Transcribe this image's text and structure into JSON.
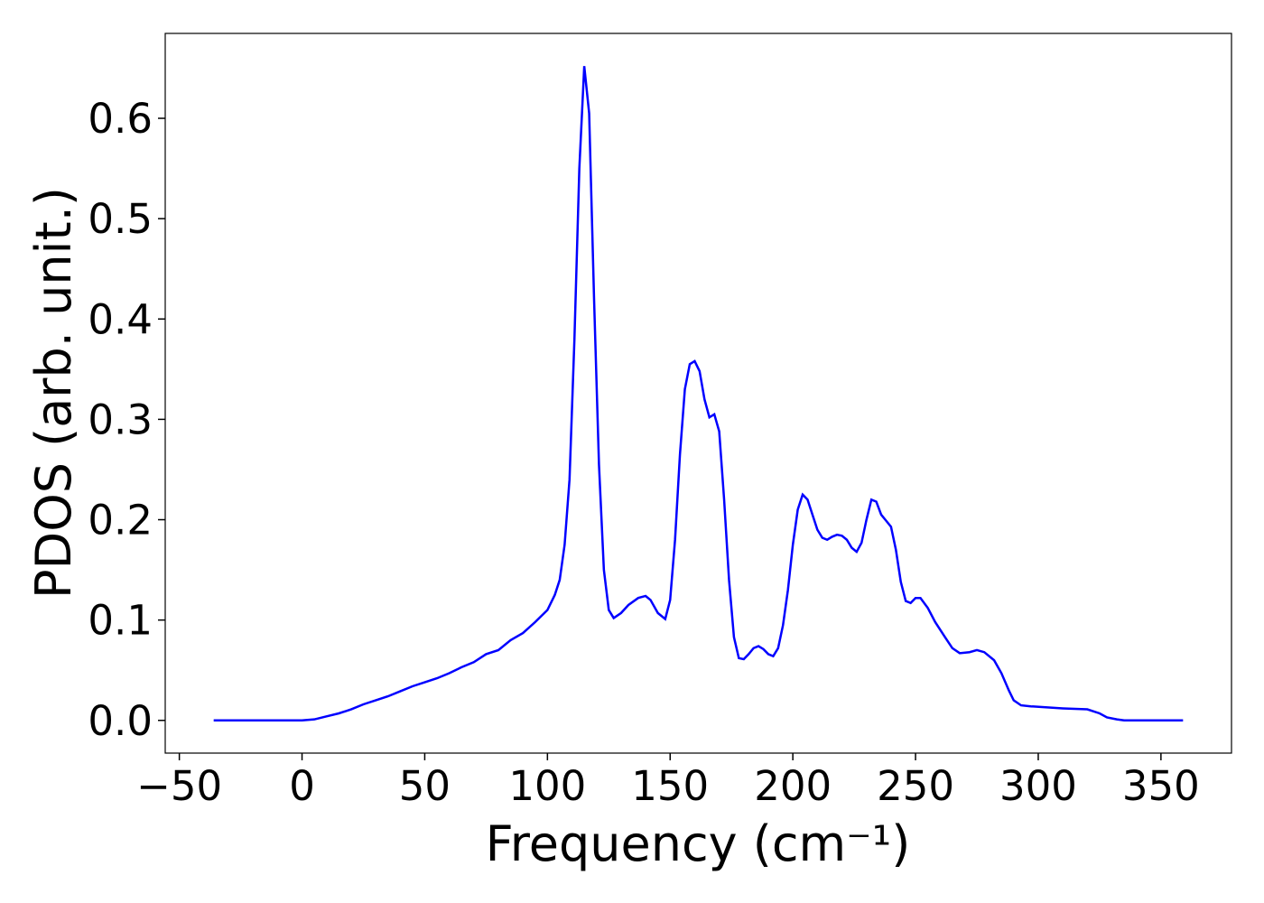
{
  "chart_data": {
    "type": "line",
    "xlabel": "Frequency (cm⁻¹)",
    "ylabel": "PDOS (arb. unit.)",
    "xlim": [
      -55.75,
      378.75
    ],
    "ylim": [
      -0.0326,
      0.6846
    ],
    "xticks": [
      {
        "value": -50,
        "label": "−50"
      },
      0,
      50,
      100,
      150,
      200,
      250,
      300,
      350
    ],
    "yticks": [
      {
        "value": 0,
        "label": "0.0"
      },
      0.1,
      0.2,
      0.3,
      0.4,
      0.5,
      0.6
    ],
    "grid": false,
    "series": [
      {
        "color": "#0000ff",
        "x": [
          -36,
          0,
          5,
          10,
          15,
          20,
          25,
          30,
          35,
          40,
          45,
          50,
          55,
          60,
          65,
          70,
          75,
          80,
          85,
          90,
          95,
          100,
          103,
          105,
          107,
          109,
          111,
          113,
          115,
          117,
          119,
          121,
          123,
          125,
          127,
          130,
          133,
          137,
          140,
          142,
          145,
          148,
          150,
          152,
          154,
          156,
          158,
          160,
          162,
          164,
          166,
          168,
          170,
          172,
          174,
          176,
          178,
          180,
          182,
          184,
          186,
          188,
          190,
          192,
          194,
          196,
          198,
          200,
          202,
          204,
          206,
          208,
          210,
          212,
          214,
          216,
          218,
          220,
          222,
          224,
          226,
          228,
          230,
          232,
          234,
          236,
          238,
          240,
          242,
          244,
          246,
          248,
          250,
          252,
          255,
          258,
          262,
          265,
          268,
          272,
          275,
          278,
          282,
          285,
          288,
          290,
          293,
          297,
          310,
          320,
          325,
          328,
          332,
          335,
          359
        ],
        "values": [
          0,
          0,
          0.001,
          0.004,
          0.007,
          0.011,
          0.016,
          0.02,
          0.024,
          0.029,
          0.034,
          0.038,
          0.042,
          0.047,
          0.053,
          0.058,
          0.066,
          0.07,
          0.08,
          0.087,
          0.098,
          0.11,
          0.125,
          0.14,
          0.175,
          0.24,
          0.38,
          0.55,
          0.652,
          0.605,
          0.42,
          0.255,
          0.15,
          0.11,
          0.102,
          0.107,
          0.115,
          0.122,
          0.124,
          0.12,
          0.107,
          0.101,
          0.12,
          0.18,
          0.265,
          0.33,
          0.355,
          0.358,
          0.348,
          0.32,
          0.302,
          0.305,
          0.288,
          0.22,
          0.14,
          0.083,
          0.062,
          0.061,
          0.066,
          0.072,
          0.074,
          0.071,
          0.066,
          0.064,
          0.072,
          0.095,
          0.13,
          0.175,
          0.21,
          0.225,
          0.22,
          0.205,
          0.19,
          0.182,
          0.18,
          0.183,
          0.185,
          0.184,
          0.18,
          0.172,
          0.168,
          0.177,
          0.2,
          0.22,
          0.218,
          0.205,
          0.199,
          0.193,
          0.17,
          0.138,
          0.119,
          0.117,
          0.122,
          0.122,
          0.112,
          0.098,
          0.083,
          0.072,
          0.067,
          0.068,
          0.07,
          0.068,
          0.06,
          0.047,
          0.03,
          0.02,
          0.015,
          0.014,
          0.012,
          0.011,
          0.007,
          0.003,
          0.001,
          0,
          0
        ]
      }
    ]
  }
}
